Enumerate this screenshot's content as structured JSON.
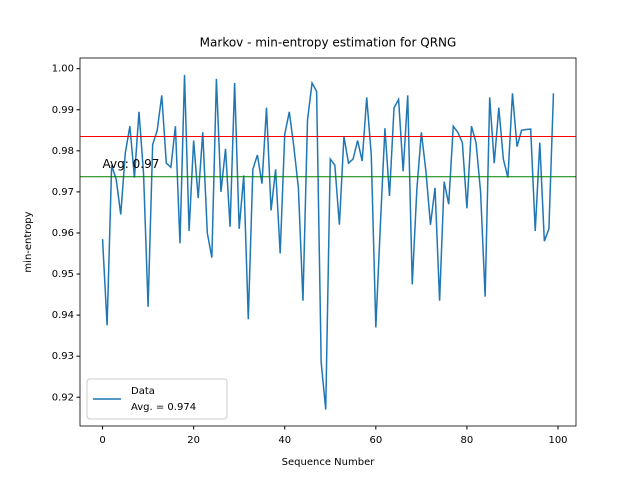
{
  "chart_data": {
    "type": "line",
    "title": "Markov - min-entropy estimation for QRNG",
    "x_label": "Sequence Number",
    "y_label": "min-entropy",
    "x": [
      0,
      1,
      2,
      3,
      4,
      5,
      6,
      7,
      8,
      9,
      10,
      11,
      12,
      13,
      14,
      15,
      16,
      17,
      18,
      19,
      20,
      21,
      22,
      23,
      24,
      25,
      26,
      27,
      28,
      29,
      30,
      31,
      32,
      33,
      34,
      35,
      36,
      37,
      38,
      39,
      40,
      41,
      42,
      43,
      44,
      45,
      46,
      47,
      48,
      49,
      50,
      51,
      52,
      53,
      54,
      55,
      56,
      57,
      58,
      59,
      60,
      61,
      62,
      63,
      64,
      65,
      66,
      67,
      68,
      69,
      70,
      71,
      72,
      73,
      74,
      75,
      76,
      77,
      78,
      79,
      80,
      81,
      82,
      83,
      84,
      85,
      86,
      87,
      88,
      89,
      90,
      91,
      92,
      93,
      94,
      95,
      96,
      97,
      98,
      99
    ],
    "series": [
      {
        "name": "Data",
        "color": "#1f77b4",
        "values": [
          0.9585,
          0.9375,
          0.9765,
          0.973,
          0.9645,
          0.9795,
          0.986,
          0.9735,
          0.9895,
          0.9745,
          0.942,
          0.9815,
          0.985,
          0.9935,
          0.977,
          0.976,
          0.986,
          0.9575,
          0.9985,
          0.9605,
          0.9825,
          0.9685,
          0.9845,
          0.96,
          0.954,
          0.9975,
          0.97,
          0.9805,
          0.9615,
          0.9965,
          0.961,
          0.974,
          0.939,
          0.9755,
          0.979,
          0.972,
          0.9905,
          0.9655,
          0.9755,
          0.955,
          0.984,
          0.9895,
          0.981,
          0.971,
          0.9435,
          0.9875,
          0.9965,
          0.9945,
          0.9285,
          0.917,
          0.978,
          0.9765,
          0.962,
          0.9835,
          0.977,
          0.978,
          0.9825,
          0.9775,
          0.993,
          0.979,
          0.937,
          0.962,
          0.9855,
          0.969,
          0.9905,
          0.9925,
          0.975,
          0.9935,
          0.9475,
          0.9705,
          0.9845,
          0.975,
          0.962,
          0.971,
          0.9435,
          0.9725,
          0.967,
          0.986,
          0.9845,
          0.982,
          0.966,
          0.986,
          0.982,
          0.97,
          0.9445,
          0.993,
          0.977,
          0.9905,
          0.978,
          0.9735,
          0.994,
          0.981,
          0.985,
          0.9852,
          0.9853,
          0.9605,
          0.982,
          0.958,
          0.961,
          0.994
        ]
      }
    ],
    "hlines": [
      {
        "value": 0.9835,
        "color": "red"
      },
      {
        "value": 0.9737,
        "color": "green"
      }
    ],
    "annotation": {
      "text": "Avg: 0.97",
      "x": 0,
      "y": 0.9755,
      "color": "blue"
    },
    "legend_note": "Avg. = 0.974",
    "legend": "lower left",
    "xlim": [
      -4.95,
      103.95
    ],
    "xticks": [
      0,
      20,
      40,
      60,
      80,
      100
    ],
    "ylim": [
      0.913,
      1.0026
    ],
    "yticks": [
      {
        "value": 0.92,
        "label": "0.92"
      },
      {
        "value": 0.93,
        "label": "0.93"
      },
      {
        "value": 0.94,
        "label": "0.94"
      },
      {
        "value": 0.95,
        "label": "0.95"
      },
      {
        "value": 0.96,
        "label": "0.96"
      },
      {
        "value": 0.97,
        "label": "0.97"
      },
      {
        "value": 0.98,
        "label": "0.98"
      },
      {
        "value": 0.99,
        "label": "0.99"
      },
      {
        "value": 1.0,
        "label": "1.00"
      }
    ]
  }
}
